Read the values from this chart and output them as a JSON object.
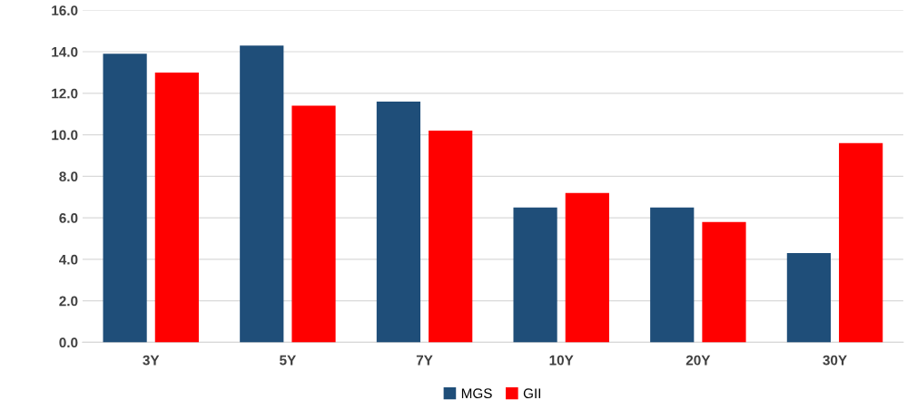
{
  "chart_data": {
    "type": "bar",
    "categories": [
      "3Y",
      "5Y",
      "7Y",
      "10Y",
      "20Y",
      "30Y"
    ],
    "series": [
      {
        "name": "MGS",
        "color": "#1f4e79",
        "values": [
          13.9,
          14.3,
          11.6,
          6.5,
          6.5,
          4.3
        ]
      },
      {
        "name": "GII",
        "color": "#ff0000",
        "values": [
          13.0,
          11.4,
          10.2,
          7.2,
          5.8,
          9.6
        ]
      }
    ],
    "ylim": [
      0,
      16
    ],
    "yticks": [
      {
        "value": 0,
        "label": "0.0"
      },
      {
        "value": 2,
        "label": "2.0"
      },
      {
        "value": 4,
        "label": "4.0"
      },
      {
        "value": 6,
        "label": "6.0"
      },
      {
        "value": 8,
        "label": "8.0"
      },
      {
        "value": 10,
        "label": "10.0"
      },
      {
        "value": 12,
        "label": "12.0"
      },
      {
        "value": 14,
        "label": "14.0"
      },
      {
        "value": 16,
        "label": "16.0"
      }
    ],
    "grid": "y",
    "legend": "bottom"
  }
}
